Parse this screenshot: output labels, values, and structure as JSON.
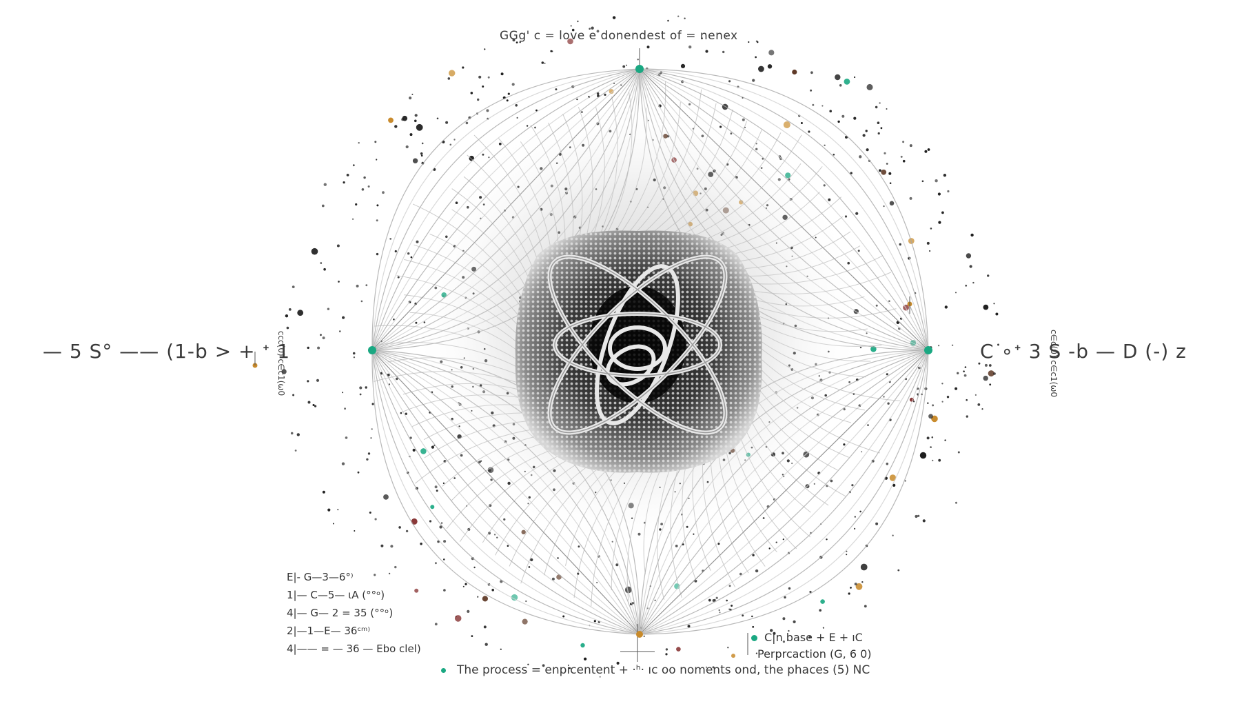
{
  "diagram": {
    "top_caption": "GGg'  c  = love e donendest of  =  nenex",
    "left_equation": "— 5  S° —— (1-b  >  + ᐩ  1",
    "right_equation": "C ∘ᐩ 3     S -b —  D (-)  z",
    "left_vertical_text": "ccc(0) c∈c1(ω0",
    "right_vertical_text": "c∈c(0) c∈c1(ω0",
    "legend_rows": [
      "E|- G—3—6°⁾",
      "1|— C—5— ιA (°°ᵒ)",
      "4|— G— 2 = 35 (°°ᵒ)",
      "2|—1—E— 36ᶜᵐ⁾",
      "4|——  = — 36 — Ebo  clel)"
    ],
    "legend_right": [
      "C|n base + E + ıC",
      "Perprcaction (G, 6 0)"
    ],
    "bottom_caption": "The process = enpicentent  + ·ʰ· ıc oo noments ond,  the phaces  (5)  NC",
    "colors": {
      "ink": "#333333",
      "accent_teal": "#1aa882",
      "accent_brown": "#6b3b22",
      "accent_amber": "#c88a2a",
      "mesh_grey": "#b8b8b8",
      "core_dark": "#1c1c1c"
    }
  }
}
